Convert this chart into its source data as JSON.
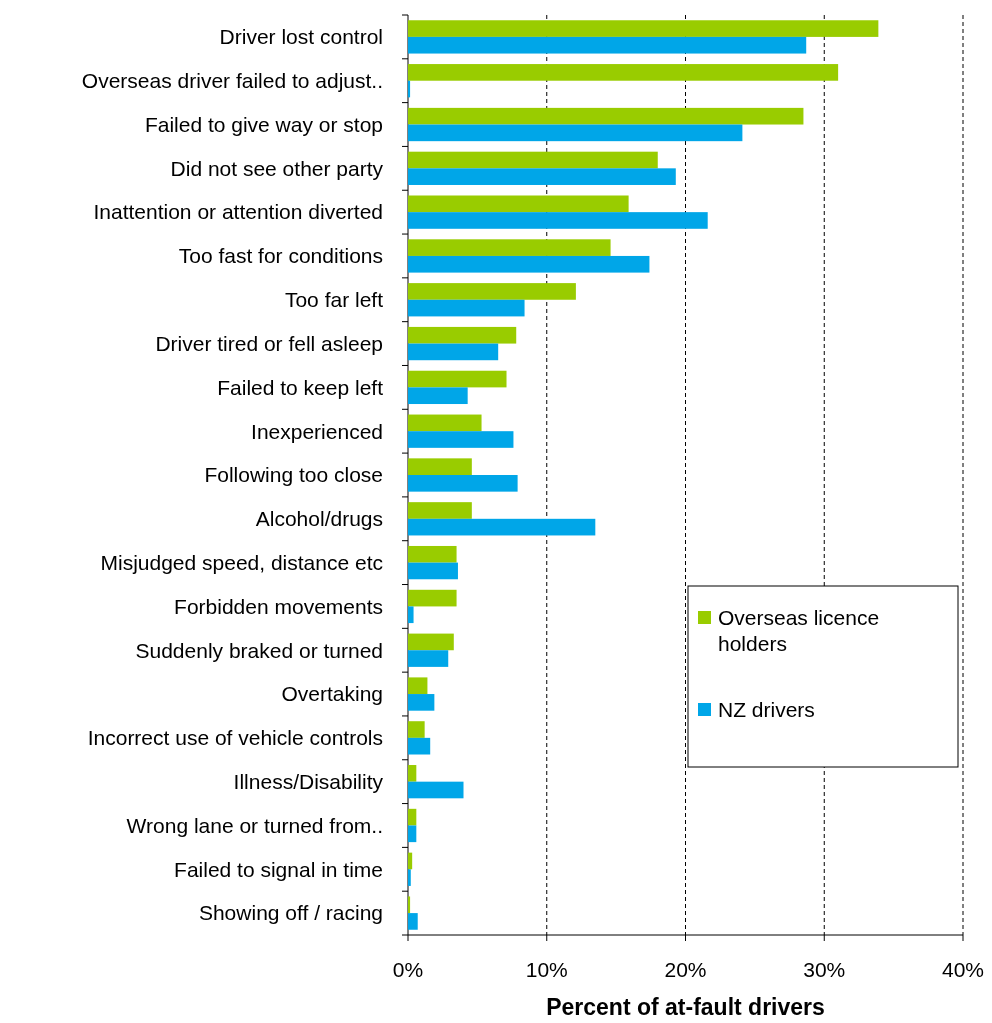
{
  "chart_data": {
    "type": "bar",
    "orientation": "horizontal",
    "xlabel": "Percent of at-fault drivers",
    "categories": [
      "Driver lost control",
      "Overseas driver failed to adjust..",
      "Failed to give way or stop",
      "Did not see other party",
      "Inattention or attention diverted",
      "Too fast for conditions",
      "Too far left",
      "Driver tired or fell asleep",
      "Failed to keep left",
      "Inexperienced",
      "Following too close",
      "Alcohol/drugs",
      "Misjudged speed, distance etc",
      "Forbidden movements",
      "Suddenly braked or turned",
      "Overtaking",
      "Incorrect use of vehicle controls",
      "Illness/Disability",
      "Wrong lane or turned from..",
      "Failed to signal in time",
      "Showing off / racing"
    ],
    "series": [
      {
        "name": "Overseas licence holders",
        "color": "#99cc00",
        "values": [
          33.9,
          31.0,
          28.5,
          18.0,
          15.9,
          14.6,
          12.1,
          7.8,
          7.1,
          5.3,
          4.6,
          4.6,
          3.5,
          3.5,
          3.3,
          1.4,
          1.2,
          0.6,
          0.6,
          0.3,
          0.15
        ]
      },
      {
        "name": "NZ drivers",
        "color": "#00a6e8",
        "values": [
          28.7,
          0.15,
          24.1,
          19.3,
          21.6,
          17.4,
          8.4,
          6.5,
          4.3,
          7.6,
          7.9,
          13.5,
          3.6,
          0.4,
          2.9,
          1.9,
          1.6,
          4.0,
          0.6,
          0.2,
          0.7
        ]
      }
    ],
    "xlim": [
      0,
      40
    ],
    "xticks": [
      {
        "value": 0,
        "label": "0%"
      },
      {
        "value": 10,
        "label": "10%"
      },
      {
        "value": 20,
        "label": "20%"
      },
      {
        "value": 30,
        "label": "30%"
      },
      {
        "value": 40,
        "label": "40%"
      }
    ],
    "grid": "x",
    "legend": "right"
  }
}
